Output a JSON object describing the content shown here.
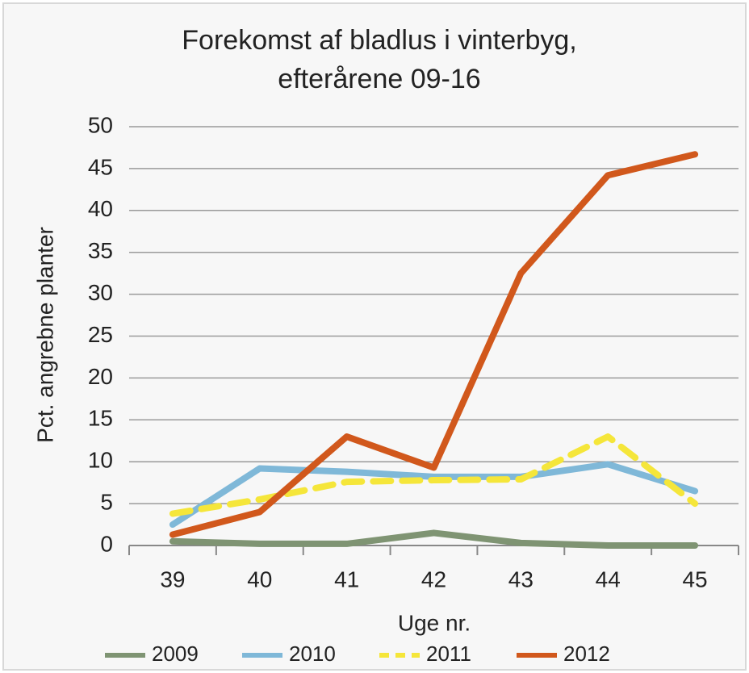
{
  "chart_data": {
    "type": "line",
    "title": [
      "Forekomst af bladlus i vinterbyg,",
      "efterårene 09-16"
    ],
    "x_label": "Uge nr.",
    "y_label": "Pct. angrebne planter",
    "categories": [
      "39",
      "40",
      "41",
      "42",
      "43",
      "44",
      "45"
    ],
    "ylim": [
      0,
      50
    ],
    "yticks": [
      0,
      5,
      10,
      15,
      20,
      25,
      30,
      35,
      40,
      45,
      50
    ],
    "grid": true,
    "legend": "bottom",
    "series": [
      {
        "name": "2009",
        "color": "#7f9473",
        "style": "solid",
        "values": [
          0.5,
          0.2,
          0.2,
          1.5,
          0.3,
          0,
          0
        ]
      },
      {
        "name": "2010",
        "color": "#7fb8d8",
        "style": "solid",
        "values": [
          2.5,
          9.2,
          8.8,
          8.2,
          8.2,
          9.7,
          6.5
        ]
      },
      {
        "name": "2011",
        "color": "#f5e63a",
        "style": "dashed",
        "values": [
          3.8,
          5.5,
          7.6,
          7.8,
          7.9,
          13,
          5
        ]
      },
      {
        "name": "2012",
        "color": "#d1581c",
        "style": "solid",
        "values": [
          1.3,
          4,
          13,
          9.3,
          32.5,
          44.2,
          46.7
        ]
      }
    ]
  }
}
